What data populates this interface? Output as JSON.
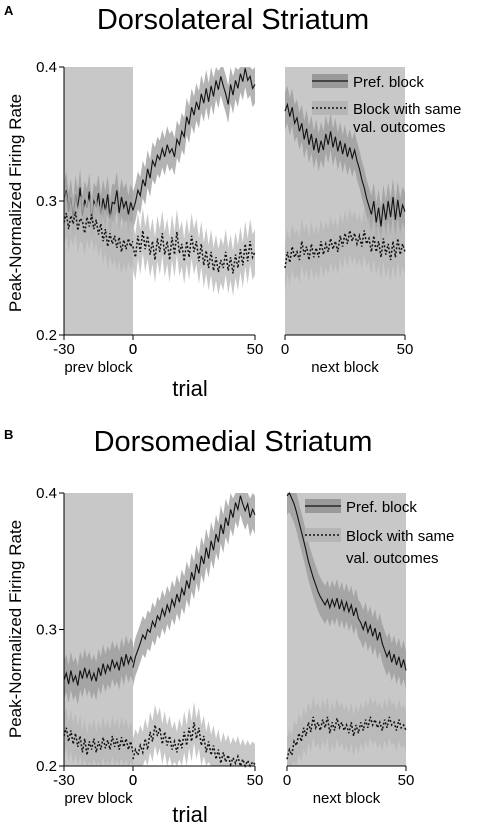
{
  "chart_data": [
    {
      "panel_letter": "A",
      "title": "Dorsolateral Striatum",
      "type": "line",
      "ylabel": "Peak-Normalized Firing Rate",
      "xlabel": "trial",
      "ylim": [
        0.2,
        0.4
      ],
      "yticks": [
        "0.2",
        "0.3",
        "0.4"
      ],
      "segments": [
        {
          "label": "prev block",
          "xlim": [
            -30,
            0
          ],
          "shaded_block": [
            -30,
            0
          ],
          "xticks": [
            "-30",
            "0"
          ]
        },
        {
          "label": "",
          "xlim": [
            0,
            50
          ],
          "shaded_block": null,
          "xticks": [
            "0",
            "50"
          ]
        },
        {
          "label": "next block",
          "xlim": [
            0,
            50
          ],
          "shaded_block": [
            0,
            50
          ],
          "xticks": [
            "0",
            "50"
          ]
        }
      ],
      "legend": {
        "position": "top-right",
        "entries": [
          "Pref. block",
          "Block with same\nval. outcomes"
        ]
      },
      "series": [
        {
          "name": "Pref. block",
          "style": "solid",
          "sem": 0.014,
          "segments": [
            {
              "x0": -30,
              "values": [
                0.299,
                0.308,
                0.292,
                0.303,
                0.287,
                0.305,
                0.294,
                0.31,
                0.289,
                0.301,
                0.295,
                0.307,
                0.285,
                0.3,
                0.296,
                0.306,
                0.29,
                0.302,
                0.293,
                0.305,
                0.287,
                0.299,
                0.298,
                0.308,
                0.291,
                0.303,
                0.295,
                0.3,
                0.29,
                0.299,
                0.293
              ]
            },
            {
              "x0": 0,
              "values": [
                0.293,
                0.299,
                0.308,
                0.304,
                0.316,
                0.311,
                0.324,
                0.317,
                0.33,
                0.326,
                0.334,
                0.331,
                0.339,
                0.333,
                0.342,
                0.336,
                0.339,
                0.333,
                0.346,
                0.342,
                0.352,
                0.348,
                0.363,
                0.357,
                0.37,
                0.364,
                0.374,
                0.368,
                0.38,
                0.373,
                0.384,
                0.374,
                0.386,
                0.378,
                0.39,
                0.383,
                0.393,
                0.386,
                0.38,
                0.372,
                0.387,
                0.379,
                0.39,
                0.384,
                0.395,
                0.389,
                0.399,
                0.39,
                0.393,
                0.384,
                0.387
              ]
            },
            {
              "x0": 0,
              "values": [
                0.367,
                0.372,
                0.363,
                0.37,
                0.358,
                0.362,
                0.352,
                0.358,
                0.346,
                0.354,
                0.342,
                0.35,
                0.338,
                0.347,
                0.336,
                0.345,
                0.338,
                0.35,
                0.342,
                0.352,
                0.34,
                0.348,
                0.337,
                0.345,
                0.335,
                0.343,
                0.333,
                0.34,
                0.332,
                0.338,
                0.33,
                0.324,
                0.316,
                0.31,
                0.302,
                0.296,
                0.29,
                0.3,
                0.284,
                0.295,
                0.281,
                0.298,
                0.286,
                0.3,
                0.288,
                0.303,
                0.286,
                0.301,
                0.288,
                0.297,
                0.292
              ]
            }
          ]
        },
        {
          "name": "Block with same\nval. outcomes",
          "style": "dotted",
          "sem": 0.017,
          "segments": [
            {
              "x0": -30,
              "values": [
                0.284,
                0.291,
                0.279,
                0.289,
                0.283,
                0.292,
                0.278,
                0.287,
                0.285,
                0.276,
                0.288,
                0.281,
                0.29,
                0.279,
                0.286,
                0.275,
                0.283,
                0.27,
                0.279,
                0.266,
                0.276,
                0.268,
                0.274,
                0.265,
                0.273,
                0.262,
                0.271,
                0.264,
                0.272,
                0.266,
                0.27
              ]
            },
            {
              "x0": 0,
              "values": [
                0.266,
                0.258,
                0.274,
                0.262,
                0.278,
                0.264,
                0.274,
                0.26,
                0.27,
                0.256,
                0.272,
                0.262,
                0.276,
                0.26,
                0.27,
                0.256,
                0.273,
                0.26,
                0.277,
                0.261,
                0.268,
                0.255,
                0.27,
                0.258,
                0.274,
                0.262,
                0.27,
                0.255,
                0.268,
                0.252,
                0.263,
                0.25,
                0.262,
                0.248,
                0.258,
                0.247,
                0.256,
                0.25,
                0.262,
                0.248,
                0.258,
                0.246,
                0.26,
                0.25,
                0.264,
                0.252,
                0.268,
                0.255,
                0.27,
                0.258,
                0.262
              ]
            },
            {
              "x0": 0,
              "values": [
                0.25,
                0.262,
                0.254,
                0.266,
                0.258,
                0.262,
                0.256,
                0.27,
                0.26,
                0.266,
                0.256,
                0.268,
                0.258,
                0.265,
                0.258,
                0.27,
                0.26,
                0.268,
                0.262,
                0.272,
                0.264,
                0.27,
                0.262,
                0.274,
                0.266,
                0.276,
                0.268,
                0.278,
                0.27,
                0.276,
                0.268,
                0.274,
                0.266,
                0.278,
                0.268,
                0.272,
                0.262,
                0.274,
                0.262,
                0.27,
                0.258,
                0.272,
                0.26,
                0.268,
                0.256,
                0.27,
                0.258,
                0.272,
                0.26,
                0.268,
                0.262
              ]
            }
          ]
        }
      ]
    },
    {
      "panel_letter": "B",
      "title": "Dorsomedial Striatum",
      "type": "line",
      "ylabel": "Peak-Normalized Firing Rate",
      "xlabel": "trial",
      "ylim": [
        0.2,
        0.4
      ],
      "yticks": [
        "0.2",
        "0.3",
        "0.4"
      ],
      "segments": [
        {
          "label": "prev block",
          "xlim": [
            -30,
            0
          ],
          "shaded_block": [
            -30,
            0
          ],
          "xticks": [
            "-30",
            "0"
          ]
        },
        {
          "label": "",
          "xlim": [
            0,
            50
          ],
          "shaded_block": null,
          "xticks": [
            "0",
            "50"
          ]
        },
        {
          "label": "next block",
          "xlim": [
            0,
            50
          ],
          "shaded_block": [
            0,
            50
          ],
          "xticks": [
            "0",
            "50"
          ]
        }
      ],
      "legend": {
        "position": "top-right",
        "entries": [
          "Pref. block",
          "Block with same\nval. outcomes"
        ]
      },
      "series": [
        {
          "name": "Pref. block",
          "style": "solid",
          "sem": 0.014,
          "segments": [
            {
              "x0": -30,
              "values": [
                0.263,
                0.268,
                0.26,
                0.27,
                0.262,
                0.266,
                0.259,
                0.27,
                0.264,
                0.272,
                0.265,
                0.27,
                0.263,
                0.268,
                0.262,
                0.272,
                0.266,
                0.275,
                0.268,
                0.274,
                0.27,
                0.278,
                0.272,
                0.276,
                0.27,
                0.28,
                0.273,
                0.282,
                0.275,
                0.28,
                0.276
              ]
            },
            {
              "x0": 0,
              "values": [
                0.272,
                0.28,
                0.285,
                0.29,
                0.296,
                0.293,
                0.3,
                0.298,
                0.306,
                0.302,
                0.31,
                0.307,
                0.315,
                0.31,
                0.318,
                0.313,
                0.322,
                0.317,
                0.326,
                0.32,
                0.33,
                0.325,
                0.336,
                0.33,
                0.342,
                0.336,
                0.348,
                0.341,
                0.354,
                0.348,
                0.36,
                0.352,
                0.365,
                0.358,
                0.37,
                0.364,
                0.377,
                0.37,
                0.382,
                0.376,
                0.388,
                0.382,
                0.393,
                0.388,
                0.398,
                0.392,
                0.387,
                0.392,
                0.382,
                0.388,
                0.384
              ]
            },
            {
              "x0": 0,
              "values": [
                0.398,
                0.4,
                0.396,
                0.392,
                0.386,
                0.379,
                0.372,
                0.365,
                0.358,
                0.35,
                0.344,
                0.338,
                0.333,
                0.328,
                0.324,
                0.321,
                0.318,
                0.322,
                0.316,
                0.322,
                0.317,
                0.323,
                0.315,
                0.321,
                0.314,
                0.32,
                0.313,
                0.318,
                0.31,
                0.316,
                0.308,
                0.305,
                0.3,
                0.306,
                0.298,
                0.303,
                0.295,
                0.301,
                0.292,
                0.298,
                0.29,
                0.285,
                0.28,
                0.284,
                0.276,
                0.282,
                0.274,
                0.28,
                0.272,
                0.278,
                0.27
              ]
            }
          ]
        },
        {
          "name": "Block with same\nval. outcomes",
          "style": "dotted",
          "sem": 0.015,
          "segments": [
            {
              "x0": -30,
              "values": [
                0.222,
                0.228,
                0.218,
                0.226,
                0.216,
                0.224,
                0.214,
                0.222,
                0.21,
                0.22,
                0.208,
                0.218,
                0.212,
                0.22,
                0.21,
                0.218,
                0.212,
                0.221,
                0.213,
                0.219,
                0.212,
                0.222,
                0.214,
                0.22,
                0.212,
                0.221,
                0.214,
                0.22,
                0.212,
                0.218,
                0.21
              ]
            },
            {
              "x0": 0,
              "values": [
                0.205,
                0.212,
                0.208,
                0.215,
                0.21,
                0.22,
                0.212,
                0.225,
                0.218,
                0.23,
                0.222,
                0.228,
                0.216,
                0.225,
                0.215,
                0.222,
                0.212,
                0.218,
                0.21,
                0.22,
                0.213,
                0.225,
                0.215,
                0.228,
                0.218,
                0.232,
                0.22,
                0.228,
                0.215,
                0.222,
                0.21,
                0.218,
                0.208,
                0.215,
                0.205,
                0.212,
                0.202,
                0.21,
                0.203,
                0.208,
                0.201,
                0.206,
                0.202,
                0.207,
                0.2,
                0.205,
                0.2,
                0.204,
                0.2,
                0.203,
                0.201
              ]
            },
            {
              "x0": 0,
              "values": [
                0.205,
                0.212,
                0.208,
                0.218,
                0.215,
                0.224,
                0.218,
                0.228,
                0.222,
                0.232,
                0.225,
                0.236,
                0.228,
                0.232,
                0.226,
                0.234,
                0.228,
                0.236,
                0.224,
                0.232,
                0.226,
                0.235,
                0.228,
                0.232,
                0.226,
                0.23,
                0.224,
                0.232,
                0.222,
                0.23,
                0.224,
                0.232,
                0.226,
                0.234,
                0.228,
                0.236,
                0.23,
                0.234,
                0.228,
                0.232,
                0.226,
                0.234,
                0.228,
                0.236,
                0.23,
                0.232,
                0.226,
                0.234,
                0.228,
                0.23,
                0.226
              ]
            }
          ]
        }
      ]
    }
  ]
}
